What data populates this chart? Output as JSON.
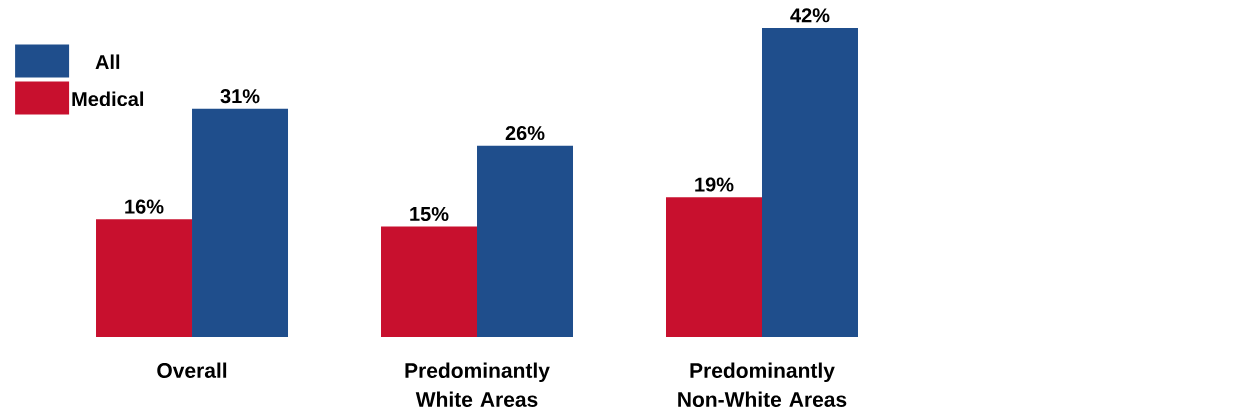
{
  "chart_data": {
    "type": "bar",
    "categories": [
      "Overall",
      "Predominantly White Areas",
      "Predominantly Non-White Areas"
    ],
    "series": [
      {
        "name": "Medical",
        "color": "#c8102e",
        "values": [
          16,
          15,
          19
        ],
        "value_labels": [
          "16%",
          "15%",
          "19%"
        ]
      },
      {
        "name": "All",
        "color": "#1f4e8c",
        "values": [
          31,
          26,
          42
        ],
        "value_labels": [
          "31%",
          "26%",
          "42%"
        ]
      }
    ],
    "legend": "top left"
  }
}
